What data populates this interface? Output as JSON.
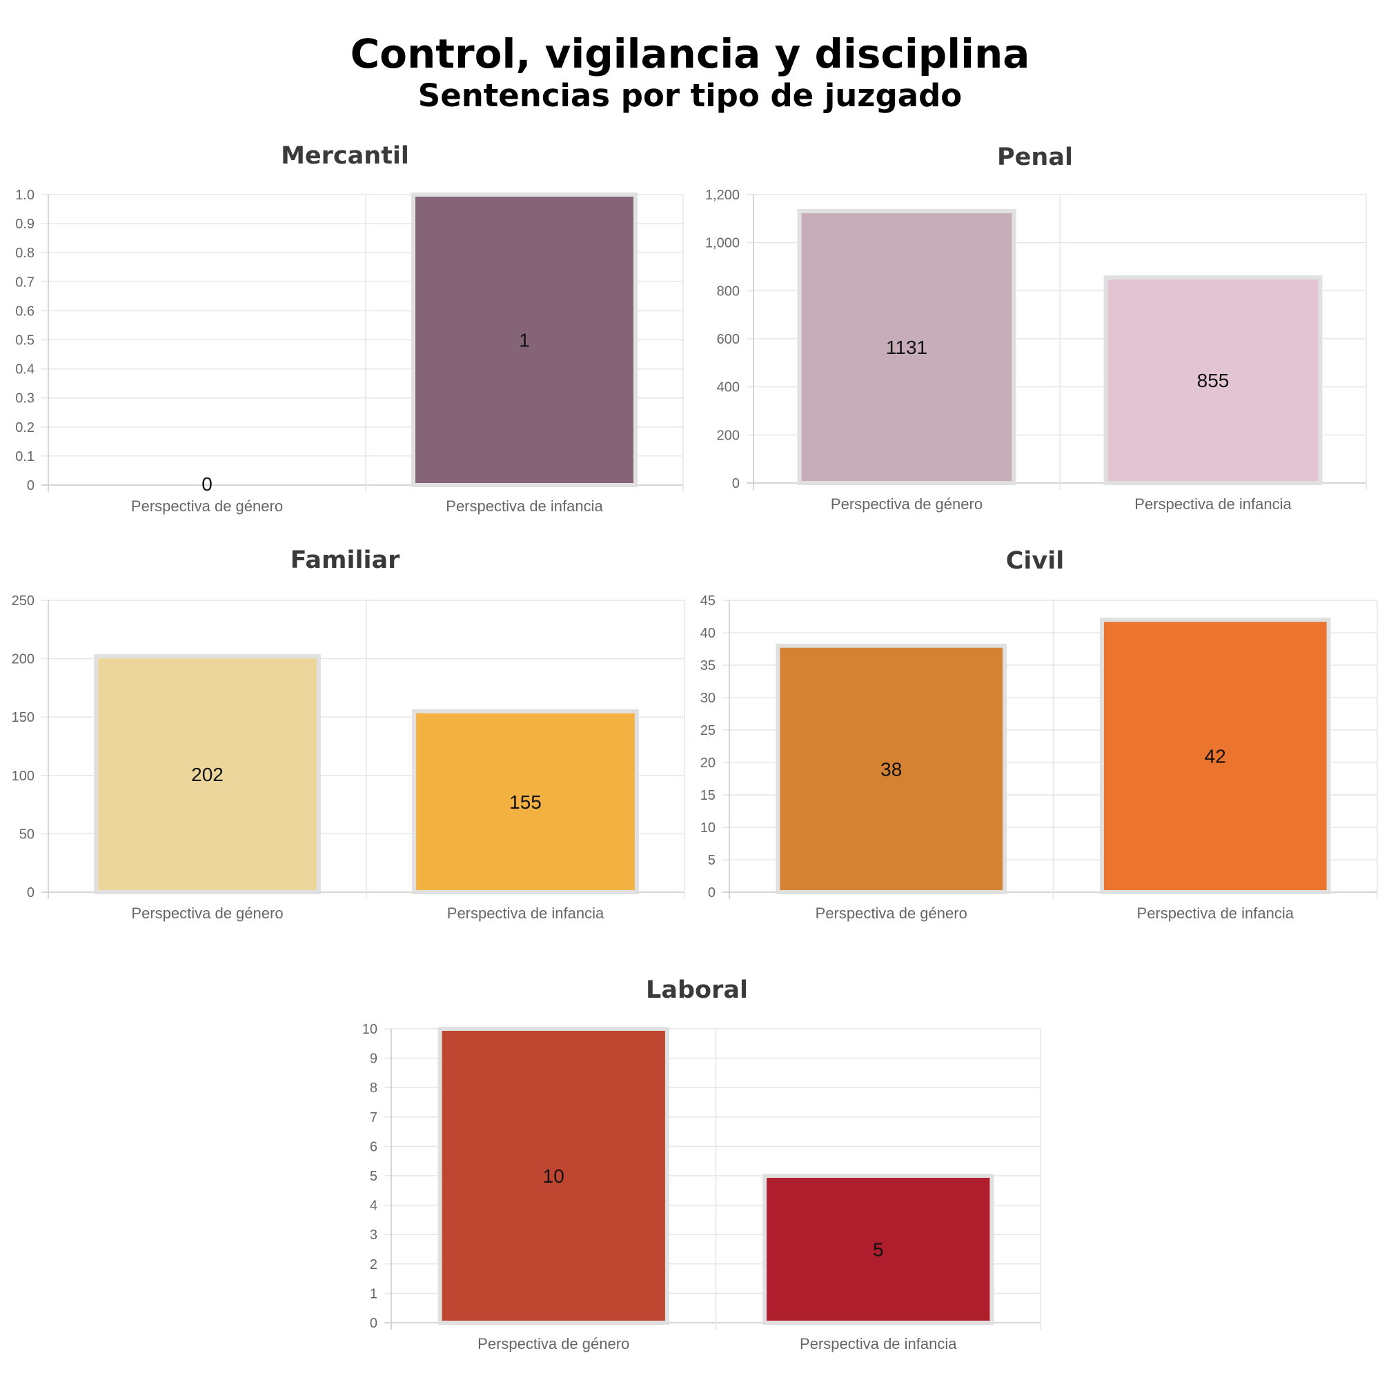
{
  "header": {
    "title": "Control, vigilancia y disciplina",
    "subtitle": "Sentencias por tipo de juzgado"
  },
  "chart_data": [
    {
      "type": "bar",
      "title": "Mercantil",
      "categories": [
        "Perspectiva de género",
        "Perspectiva de infancia"
      ],
      "values": [
        0,
        1
      ],
      "ylim": [
        0,
        1.0
      ],
      "yticks": [
        "0",
        "0.1",
        "0.2",
        "0.3",
        "0.4",
        "0.5",
        "0.6",
        "0.7",
        "0.8",
        "0.9",
        "1.0"
      ],
      "colors": [
        "#866477",
        "#866477"
      ],
      "grid": true
    },
    {
      "type": "bar",
      "title": "Penal",
      "categories": [
        "Perspectiva de género",
        "Perspectiva de infancia"
      ],
      "values": [
        1131,
        855
      ],
      "ylim": [
        0,
        1200
      ],
      "yticks": [
        "0",
        "200",
        "400",
        "600",
        "800",
        "1,000",
        "1,200"
      ],
      "colors": [
        "#c6adb9",
        "#e2c4d2"
      ],
      "grid": true
    },
    {
      "type": "bar",
      "title": "Familiar",
      "categories": [
        "Perspectiva de género",
        "Perspectiva de infancia"
      ],
      "values": [
        202,
        155
      ],
      "ylim": [
        0,
        250
      ],
      "yticks": [
        "0",
        "50",
        "100",
        "150",
        "200",
        "250"
      ],
      "colors": [
        "#ecd69c",
        "#f3b142"
      ],
      "grid": true
    },
    {
      "type": "bar",
      "title": "Civil",
      "categories": [
        "Perspectiva de género",
        "Perspectiva de infancia"
      ],
      "values": [
        38,
        42
      ],
      "ylim": [
        0,
        45
      ],
      "yticks": [
        "0",
        "5",
        "10",
        "15",
        "20",
        "25",
        "30",
        "35",
        "40",
        "45"
      ],
      "colors": [
        "#d58233",
        "#eb752e"
      ],
      "grid": true
    },
    {
      "type": "bar",
      "title": "Laboral",
      "categories": [
        "Perspectiva de género",
        "Perspectiva de infancia"
      ],
      "values": [
        10,
        5
      ],
      "ylim": [
        0,
        10
      ],
      "yticks": [
        "0",
        "1",
        "2",
        "3",
        "4",
        "5",
        "6",
        "7",
        "8",
        "9",
        "10"
      ],
      "colors": [
        "#be4630",
        "#ae1e2d"
      ],
      "grid": true
    }
  ]
}
